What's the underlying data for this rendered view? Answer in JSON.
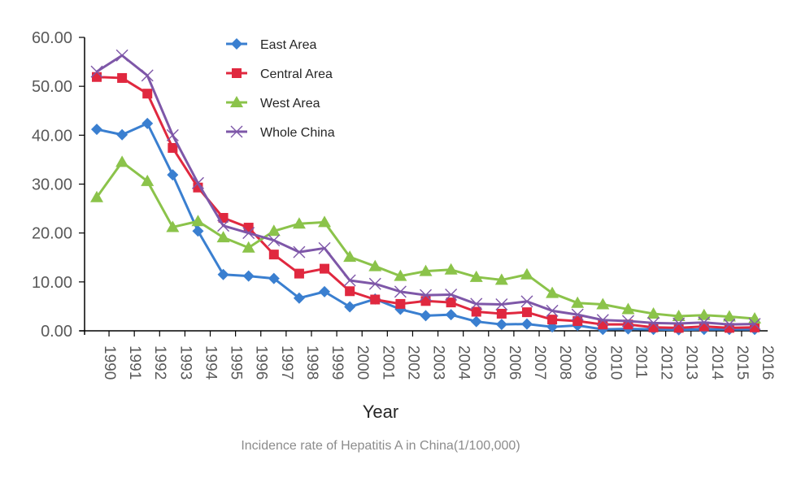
{
  "chart_data": {
    "type": "line",
    "title": "",
    "subtitle": "Incidence rate of Hepatitis A in China(1/100,000)",
    "xlabel": "Year",
    "ylabel": "",
    "ylim": [
      0,
      60
    ],
    "yticks": [
      "0.00",
      "10.00",
      "20.00",
      "30.00",
      "40.00",
      "50.00",
      "60.00"
    ],
    "ytick_values": [
      0,
      10,
      20,
      30,
      40,
      50,
      60
    ],
    "grid": false,
    "legend_position": "top-center",
    "categories": [
      "1990",
      "1991",
      "1992",
      "1993",
      "1994",
      "1995",
      "1996",
      "1997",
      "1998",
      "1999",
      "2000",
      "2001",
      "2002",
      "2003",
      "2004",
      "2005",
      "2006",
      "2007",
      "2008",
      "2009",
      "2010",
      "2011",
      "2012",
      "2013",
      "2014",
      "2015",
      "2016"
    ],
    "series": [
      {
        "name": "East Area",
        "color": "#3a7fd0",
        "marker": "diamond",
        "values": [
          41.2,
          40.1,
          42.4,
          31.9,
          20.4,
          11.5,
          11.2,
          10.7,
          6.7,
          8.0,
          4.9,
          6.5,
          4.4,
          3.1,
          3.3,
          1.9,
          1.3,
          1.4,
          0.8,
          1.1,
          0.3,
          0.4,
          0.3,
          0.2,
          0.3,
          0.3,
          0.3
        ]
      },
      {
        "name": "Central Area",
        "color": "#e0283f",
        "marker": "square",
        "values": [
          51.9,
          51.7,
          48.5,
          37.4,
          29.3,
          23.1,
          21.1,
          15.6,
          11.7,
          12.7,
          8.1,
          6.4,
          5.5,
          6.1,
          5.8,
          3.9,
          3.5,
          3.8,
          2.3,
          2.0,
          1.3,
          1.3,
          0.7,
          0.6,
          0.9,
          0.6,
          0.7
        ]
      },
      {
        "name": "West Area",
        "color": "#8bc34a",
        "marker": "triangle",
        "values": [
          27.3,
          34.5,
          30.6,
          21.2,
          22.4,
          19.1,
          17.0,
          20.4,
          21.9,
          22.2,
          15.1,
          13.2,
          11.2,
          12.2,
          12.5,
          11.0,
          10.4,
          11.5,
          7.7,
          5.7,
          5.4,
          4.4,
          3.5,
          3.0,
          3.2,
          2.9,
          2.5
        ]
      },
      {
        "name": "Whole China",
        "color": "#7e57a8",
        "marker": "x",
        "values": [
          53.0,
          56.3,
          52.2,
          40.0,
          30.2,
          21.5,
          20.0,
          18.5,
          16.1,
          16.9,
          10.3,
          9.6,
          8.0,
          7.3,
          7.4,
          5.5,
          5.4,
          6.0,
          4.1,
          3.3,
          2.2,
          2.0,
          1.6,
          1.5,
          1.7,
          1.3,
          1.4
        ]
      }
    ]
  }
}
